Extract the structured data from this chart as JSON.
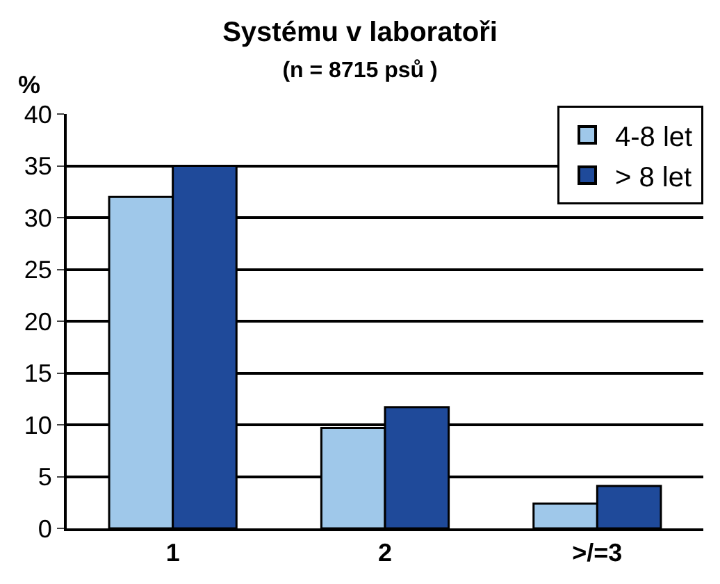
{
  "chart_data": {
    "type": "bar",
    "title": "Systému v laboratoři",
    "subtitle": "(n = 8715 psů )",
    "ylabel": "%",
    "categories": [
      "1",
      "2",
      ">/=3"
    ],
    "series": [
      {
        "name": "4-8 let",
        "color": "#9fc8ea",
        "values": [
          32,
          9.7,
          2.4
        ]
      },
      {
        "name": "> 8 let",
        "color": "#1f4a9a",
        "values": [
          35,
          11.7,
          4.1
        ]
      }
    ],
    "ylim": [
      0,
      40
    ],
    "yticks": [
      0,
      5,
      10,
      15,
      20,
      25,
      30,
      35,
      40
    ],
    "grid": "y",
    "legend": "top right"
  }
}
